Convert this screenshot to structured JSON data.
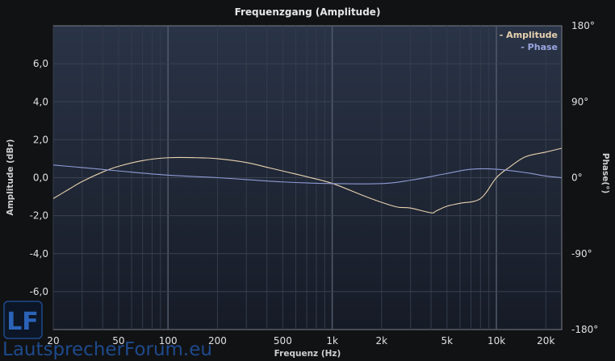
{
  "chart_data": {
    "type": "line",
    "title": "Frequenzgang (Amplitude)",
    "xlabel": "Frequenz (Hz)",
    "ylabel_left": "Amplitude (dBr)",
    "ylabel_right": "Phase(°)",
    "x_scale": "log",
    "xlim": [
      20,
      25000
    ],
    "ylim_left": [
      -8.0,
      8.0
    ],
    "ylim_right": [
      -180,
      180
    ],
    "x_ticks": [
      20,
      50,
      100,
      200,
      500,
      1000,
      2000,
      5000,
      10000,
      20000
    ],
    "x_tick_labels": [
      "20",
      "50",
      "100",
      "200",
      "500",
      "1k",
      "2k",
      "5k",
      "10k",
      "20k"
    ],
    "y_left_ticks": [
      6,
      4,
      2,
      0,
      -2,
      -4,
      -6
    ],
    "y_left_tick_labels": [
      "6,0",
      "4,0",
      "2,0",
      "0,0",
      "-2,0",
      "-4,0",
      "-6,0"
    ],
    "y_right_ticks": [
      180,
      90,
      0,
      -90,
      -180
    ],
    "y_right_tick_labels": [
      "180°",
      "90°",
      "0°",
      "-90°",
      "-180°"
    ],
    "grid": true,
    "legend_position": "top-right",
    "series": [
      {
        "name": "- Amplitude",
        "axis": "left",
        "color": "#e8d2b0",
        "x": [
          20,
          25,
          30,
          40,
          50,
          70,
          100,
          150,
          200,
          300,
          400,
          500,
          700,
          1000,
          1500,
          2000,
          2500,
          3000,
          4000,
          4300,
          5000,
          6000,
          8000,
          10000,
          12000,
          15000,
          20000,
          25000
        ],
        "y": [
          -1.1,
          -0.6,
          -0.2,
          0.3,
          0.6,
          0.9,
          1.05,
          1.05,
          1.0,
          0.8,
          0.55,
          0.35,
          0.05,
          -0.3,
          -0.9,
          -1.3,
          -1.55,
          -1.6,
          -1.85,
          -1.75,
          -1.5,
          -1.35,
          -1.1,
          0.0,
          0.55,
          1.1,
          1.35,
          1.55
        ]
      },
      {
        "name": "- Phase",
        "axis": "right",
        "color": "#8f9bd6",
        "x": [
          20,
          30,
          50,
          100,
          200,
          500,
          1000,
          2000,
          3000,
          5000,
          7000,
          10000,
          15000,
          20000,
          25000
        ],
        "y": [
          15,
          12,
          8,
          3,
          0,
          -5,
          -7,
          -7,
          -3,
          5,
          10,
          10,
          6,
          2,
          0
        ]
      }
    ]
  },
  "watermark": {
    "logo_letters": "LF",
    "text": "LautsprecherForum.eu"
  }
}
